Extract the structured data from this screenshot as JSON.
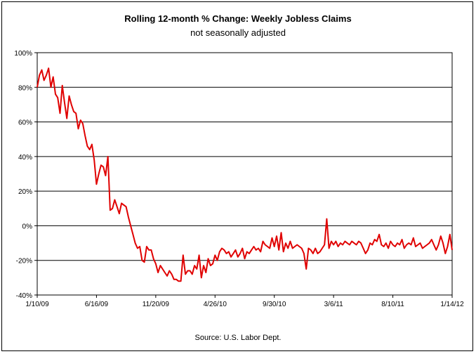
{
  "chart_data": {
    "type": "line",
    "title": "Rolling 12-month %  Change: Weekly Jobless Claims",
    "subtitle": "not seasonally adjusted",
    "source": "Source: U.S. Labor Dept.",
    "xlabel": "",
    "ylabel": "",
    "x_tick_labels": [
      "1/10/09",
      "6/16/09",
      "11/20/09",
      "4/26/10",
      "9/30/10",
      "3/6/11",
      "8/10/11",
      "1/14/12"
    ],
    "y_tick_labels": [
      "100%",
      "80%",
      "60%",
      "40%",
      "20%",
      "0%",
      "-20%",
      "-40%"
    ],
    "ylim": [
      -40,
      100
    ],
    "grid": "horizontal",
    "line_color": "#e00000",
    "series": [
      {
        "values": [
          80,
          87,
          90,
          84,
          87,
          91,
          80,
          86,
          76,
          74,
          65,
          81,
          71,
          62,
          75,
          70,
          66,
          65,
          56,
          61,
          59,
          52,
          46,
          44,
          47,
          38,
          24,
          30,
          35,
          34,
          29,
          40,
          9,
          10,
          15,
          11,
          7,
          13,
          12,
          11,
          5,
          0,
          -5,
          -10,
          -13,
          -12,
          -20,
          -21,
          -12,
          -14,
          -14,
          -19,
          -22,
          -27,
          -23,
          -25,
          -27,
          -29,
          -26,
          -28,
          -31,
          -31,
          -32,
          -32,
          -17,
          -28,
          -26,
          -26,
          -28,
          -23,
          -25,
          -17,
          -30,
          -23,
          -27,
          -19,
          -23,
          -22,
          -17,
          -20,
          -15,
          -13,
          -14,
          -16,
          -15,
          -18,
          -16,
          -14,
          -18,
          -16,
          -13,
          -19,
          -15,
          -16,
          -14,
          -12,
          -14,
          -13,
          -15,
          -9,
          -11,
          -12,
          -13,
          -7,
          -12,
          -6,
          -14,
          -4,
          -15,
          -10,
          -13,
          -9,
          -13,
          -12,
          -11,
          -12,
          -13,
          -16,
          -25,
          -13,
          -14,
          -16,
          -13,
          -16,
          -15,
          -13,
          -11,
          4,
          -13,
          -9,
          -11,
          -9,
          -12,
          -10,
          -11,
          -9,
          -10,
          -11,
          -9,
          -10,
          -11,
          -9,
          -10,
          -13,
          -16,
          -14,
          -10,
          -11,
          -8,
          -9,
          -5,
          -11,
          -12,
          -10,
          -13,
          -9,
          -11,
          -12,
          -10,
          -11,
          -8,
          -13,
          -11,
          -10,
          -11,
          -7,
          -12,
          -11,
          -10,
          -13,
          -12,
          -11,
          -10,
          -8,
          -11,
          -14,
          -11,
          -6,
          -10,
          -16,
          -12,
          -5,
          -14
        ]
      }
    ]
  }
}
